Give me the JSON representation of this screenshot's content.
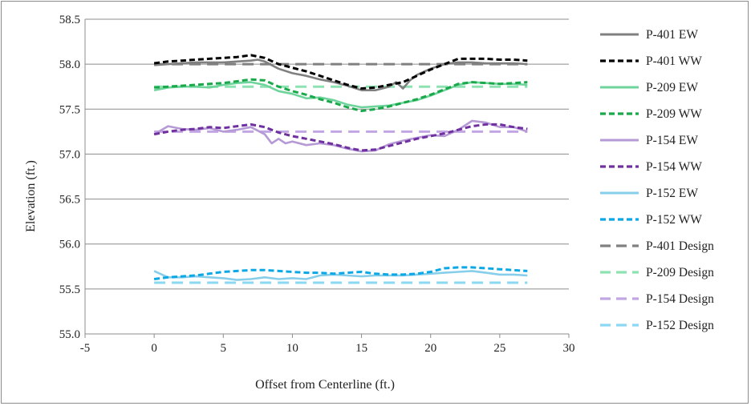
{
  "chart_data": {
    "type": "line",
    "title": "",
    "xlabel": "Offset from Centerline (ft.)",
    "ylabel": "Elevation (ft.)",
    "xlim": [
      -5,
      30
    ],
    "ylim": [
      55.0,
      58.5
    ],
    "xticks": [
      -5,
      0,
      5,
      10,
      15,
      20,
      25,
      30
    ],
    "yticks": [
      55.0,
      55.5,
      56.0,
      56.5,
      57.0,
      57.5,
      58.0,
      58.5
    ],
    "xtick_labels": [
      "-5",
      "0",
      "5",
      "10",
      "15",
      "20",
      "25",
      "30"
    ],
    "ytick_labels": [
      "55.0",
      "55.5",
      "56.0",
      "56.5",
      "57.0",
      "57.5",
      "58.0",
      "58.5"
    ],
    "grid": "horizontal",
    "legend_position": "right",
    "series": [
      {
        "name": "P-401 EW",
        "color": "#808080",
        "dash": "solid",
        "x": [
          0,
          1,
          2,
          3,
          4,
          5,
          6,
          7,
          7.5,
          8,
          9,
          10,
          11,
          12,
          13,
          14,
          15,
          16,
          17,
          17.5,
          18,
          18.5,
          19,
          20,
          21,
          22,
          23,
          24,
          25,
          26,
          27
        ],
        "y": [
          57.99,
          58.0,
          58.01,
          58.02,
          58.02,
          58.02,
          58.03,
          58.04,
          58.05,
          58.03,
          57.95,
          57.9,
          57.87,
          57.83,
          57.8,
          57.76,
          57.71,
          57.71,
          57.75,
          57.8,
          57.73,
          57.82,
          57.88,
          57.95,
          58.0,
          58.02,
          58.02,
          58.01,
          58.01,
          58.01,
          58.0
        ]
      },
      {
        "name": "P-401 WW",
        "color": "#000000",
        "dash": "dashed",
        "x": [
          0,
          1,
          2,
          3,
          4,
          5,
          6,
          7,
          8,
          9,
          10,
          11,
          12,
          13,
          14,
          15,
          16,
          17,
          18,
          19,
          20,
          21,
          22,
          23,
          24,
          25,
          26,
          27
        ],
        "y": [
          58.01,
          58.03,
          58.04,
          58.05,
          58.06,
          58.07,
          58.08,
          58.1,
          58.07,
          58.0,
          57.96,
          57.92,
          57.87,
          57.82,
          57.77,
          57.73,
          57.74,
          57.77,
          57.8,
          57.87,
          57.94,
          58.0,
          58.06,
          58.06,
          58.06,
          58.05,
          58.05,
          58.04
        ]
      },
      {
        "name": "P-209 EW",
        "color": "#6fd49b",
        "dash": "solid",
        "x": [
          0,
          1,
          2,
          3,
          4,
          5,
          6,
          7,
          8,
          9,
          10,
          11,
          12,
          13,
          14,
          15,
          16,
          17,
          18,
          19,
          20,
          21,
          22,
          23,
          24,
          25,
          26,
          27
        ],
        "y": [
          57.71,
          57.74,
          57.75,
          57.75,
          57.74,
          57.77,
          57.79,
          57.8,
          57.77,
          57.7,
          57.67,
          57.62,
          57.63,
          57.6,
          57.55,
          57.52,
          57.53,
          57.54,
          57.57,
          57.6,
          57.65,
          57.71,
          57.77,
          57.8,
          57.79,
          57.78,
          57.78,
          57.77
        ]
      },
      {
        "name": "P-209 WW",
        "color": "#19a84a",
        "dash": "dashed",
        "x": [
          0,
          1,
          2,
          3,
          4,
          5,
          6,
          7,
          8,
          9,
          10,
          11,
          12,
          13,
          14,
          15,
          16,
          17,
          18,
          19,
          20,
          21,
          22,
          23,
          24,
          25,
          26,
          27
        ],
        "y": [
          57.74,
          57.75,
          57.76,
          57.77,
          57.78,
          57.79,
          57.81,
          57.83,
          57.82,
          57.75,
          57.7,
          57.66,
          57.61,
          57.57,
          57.52,
          57.48,
          57.5,
          57.53,
          57.57,
          57.61,
          57.66,
          57.72,
          57.78,
          57.8,
          57.79,
          57.78,
          57.79,
          57.8
        ]
      },
      {
        "name": "P-154 EW",
        "color": "#b59ad6",
        "dash": "solid",
        "x": [
          0,
          1,
          2,
          3,
          4,
          5,
          6,
          7,
          8,
          8.5,
          9,
          9.5,
          10,
          11,
          12,
          13,
          14,
          15,
          16,
          17,
          18,
          19,
          20,
          21,
          22,
          23,
          24,
          25,
          26,
          27
        ],
        "y": [
          57.22,
          57.31,
          57.28,
          57.27,
          57.29,
          57.25,
          57.27,
          57.3,
          57.22,
          57.12,
          57.17,
          57.12,
          57.14,
          57.1,
          57.12,
          57.1,
          57.06,
          57.03,
          57.04,
          57.11,
          57.15,
          57.18,
          57.21,
          57.2,
          57.27,
          57.37,
          57.35,
          57.3,
          57.3,
          57.25
        ]
      },
      {
        "name": "P-154 WW",
        "color": "#7030a0",
        "dash": "dashed",
        "x": [
          0,
          1,
          2,
          3,
          4,
          5,
          6,
          7,
          8,
          9,
          10,
          11,
          12,
          13,
          14,
          15,
          16,
          17,
          18,
          19,
          20,
          21,
          22,
          23,
          24,
          25,
          26,
          27
        ],
        "y": [
          57.22,
          57.25,
          57.27,
          57.28,
          57.3,
          57.29,
          57.31,
          57.33,
          57.3,
          57.24,
          57.2,
          57.17,
          57.14,
          57.11,
          57.07,
          57.04,
          57.05,
          57.09,
          57.13,
          57.17,
          57.2,
          57.23,
          57.27,
          57.31,
          57.33,
          57.33,
          57.3,
          57.28
        ]
      },
      {
        "name": "P-152 EW",
        "color": "#87ceeb",
        "dash": "solid",
        "x": [
          0,
          1,
          2,
          3,
          4,
          5,
          6,
          7,
          8,
          9,
          10,
          11,
          12,
          13,
          14,
          15,
          16,
          17,
          18,
          19,
          20,
          21,
          22,
          23,
          24,
          25,
          26,
          27
        ],
        "y": [
          55.7,
          55.63,
          55.63,
          55.64,
          55.63,
          55.62,
          55.6,
          55.61,
          55.63,
          55.61,
          55.62,
          55.61,
          55.65,
          55.66,
          55.65,
          55.64,
          55.65,
          55.65,
          55.65,
          55.66,
          55.67,
          55.68,
          55.69,
          55.7,
          55.68,
          55.66,
          55.66,
          55.65
        ]
      },
      {
        "name": "P-152 WW",
        "color": "#0ba8e6",
        "dash": "dashed",
        "x": [
          0,
          1,
          2,
          3,
          4,
          5,
          6,
          7,
          8,
          9,
          10,
          11,
          12,
          13,
          14,
          15,
          16,
          17,
          18,
          19,
          20,
          21,
          22,
          23,
          24,
          25,
          26,
          27
        ],
        "y": [
          55.61,
          55.63,
          55.64,
          55.65,
          55.67,
          55.69,
          55.7,
          55.71,
          55.71,
          55.7,
          55.69,
          55.68,
          55.68,
          55.67,
          55.68,
          55.69,
          55.67,
          55.66,
          55.66,
          55.67,
          55.69,
          55.73,
          55.74,
          55.74,
          55.73,
          55.72,
          55.71,
          55.7
        ]
      },
      {
        "name": "P-401 Design",
        "color": "#808080",
        "dash": "longdash",
        "x": [
          0,
          27
        ],
        "y": [
          58.0,
          58.0
        ]
      },
      {
        "name": "P-209 Design",
        "color": "#8ee2b2",
        "dash": "longdash",
        "x": [
          0,
          27
        ],
        "y": [
          57.75,
          57.75
        ]
      },
      {
        "name": "P-154 Design",
        "color": "#c2a6e4",
        "dash": "longdash",
        "x": [
          0,
          27
        ],
        "y": [
          57.25,
          57.25
        ]
      },
      {
        "name": "P-152 Design",
        "color": "#8ad8f2",
        "dash": "longdash",
        "x": [
          0,
          27
        ],
        "y": [
          55.57,
          55.57
        ]
      }
    ]
  }
}
